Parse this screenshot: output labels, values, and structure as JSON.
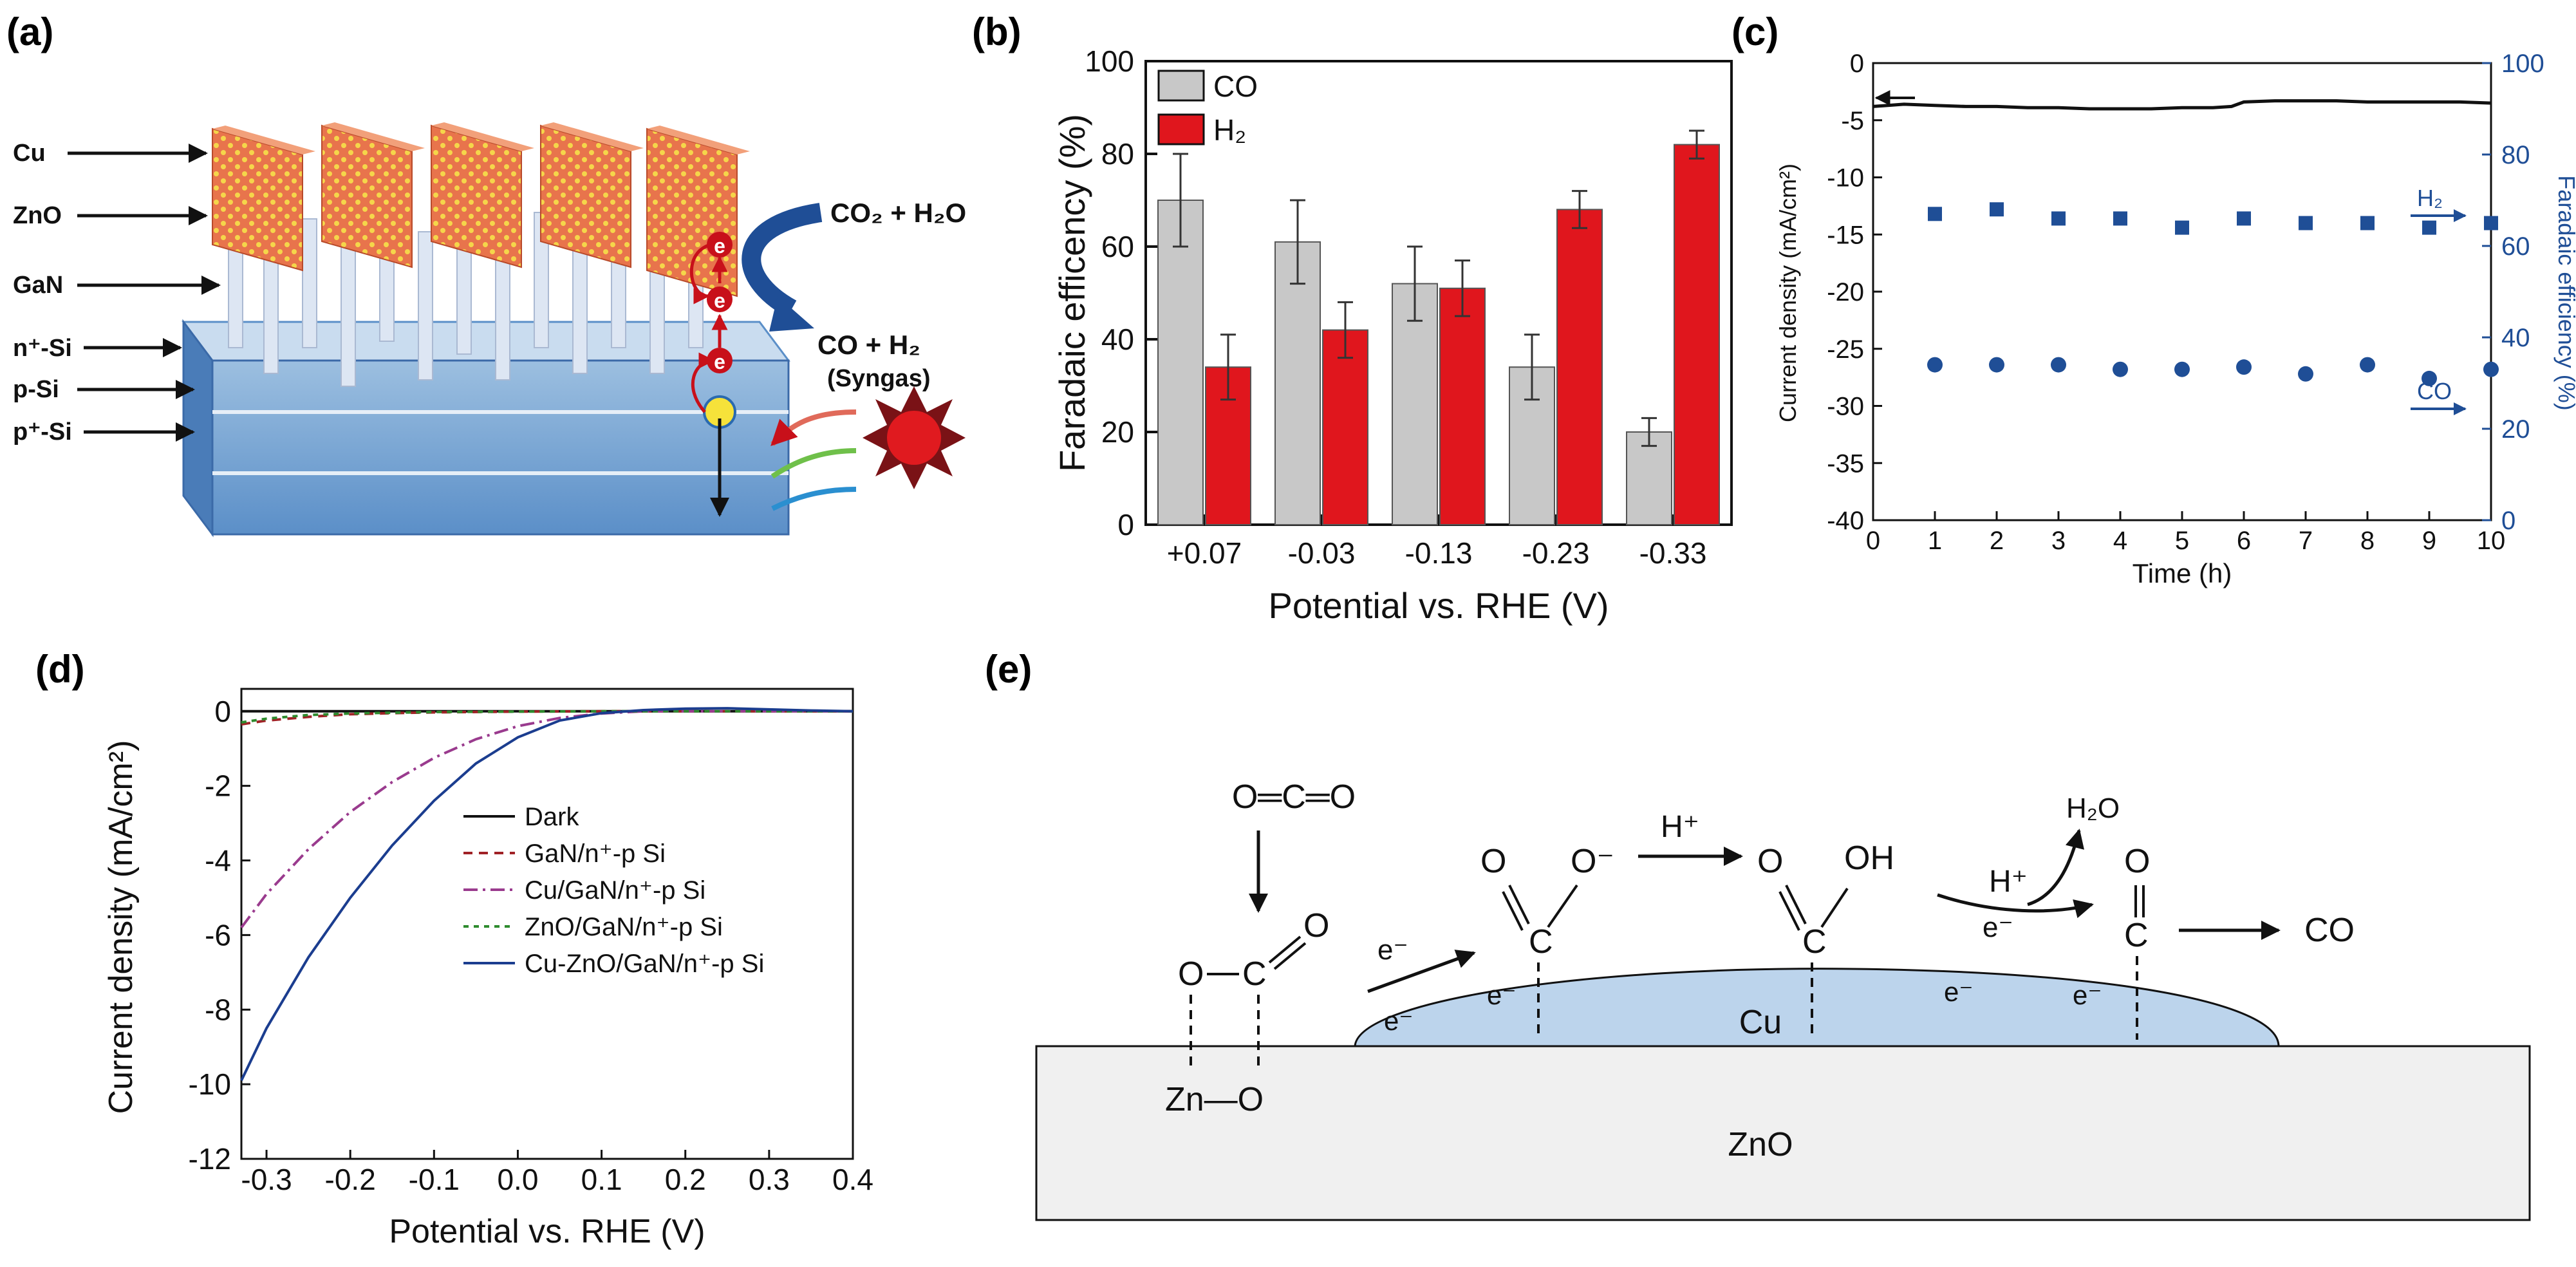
{
  "panels": {
    "a": {
      "label": "(a)",
      "layers": [
        "Cu",
        "ZnO",
        "GaN",
        "n⁺-Si",
        "p-Si",
        "p⁺-Si"
      ],
      "reactant": "CO₂ + H₂O",
      "product": "CO + H₂",
      "product_note": "(Syngas)",
      "electron_symbol": "e"
    },
    "b": {
      "label": "(b)"
    },
    "c": {
      "label": "(c)"
    },
    "d": {
      "label": "(d)"
    },
    "e": {
      "label": "(e)",
      "substrate": "ZnO",
      "metal": "Cu",
      "co2": "O═C═O",
      "electron": "e⁻",
      "proton": "H⁺",
      "water": "H₂O",
      "oh": "OH",
      "o_minus": "O⁻",
      "zn_o": "Zn—O",
      "product": "CO",
      "o": "O",
      "c": "C"
    }
  },
  "colors": {
    "gray_bar": "#c8c8c8",
    "red_bar": "#e0161d",
    "blue_marker": "#1f4e96",
    "cu_blue": "#bcd4ec"
  },
  "chart_data": [
    {
      "id": "b",
      "type": "bar",
      "categories": [
        "+0.07",
        "-0.03",
        "-0.13",
        "-0.23",
        "-0.33"
      ],
      "series": [
        {
          "name": "CO",
          "values": [
            70,
            61,
            52,
            34,
            20
          ],
          "errors": [
            10,
            9,
            8,
            7,
            3
          ]
        },
        {
          "name": "H₂",
          "values": [
            34,
            42,
            51,
            68,
            82
          ],
          "errors": [
            7,
            6,
            6,
            4,
            3
          ]
        }
      ],
      "xlabel": "Potential vs. RHE (V)",
      "ylabel": "Faradaic efficency (%)",
      "ylim": [
        0,
        100
      ],
      "yticks": [
        "0",
        "20",
        "40",
        "60",
        "80",
        "100"
      ],
      "legend": "top-left"
    },
    {
      "id": "c",
      "type": "line",
      "xlabel": "Time (h)",
      "ylabel": "Current density (mA/cm²)",
      "y2label": "Faradaic efficiency (%)",
      "xlim": [
        0,
        10
      ],
      "ylim": [
        -40,
        0
      ],
      "y2lim": [
        0,
        100
      ],
      "xticks": [
        "0",
        "1",
        "2",
        "3",
        "4",
        "5",
        "6",
        "7",
        "8",
        "9",
        "10"
      ],
      "yticks": [
        "-40",
        "-35",
        "-30",
        "-25",
        "-20",
        "-15",
        "-10",
        "-5",
        "0"
      ],
      "y2ticks": [
        "0",
        "20",
        "40",
        "60",
        "80",
        "100"
      ],
      "current": {
        "x": [
          0,
          0.5,
          1,
          1.5,
          2,
          2.5,
          3,
          3.5,
          4,
          4.5,
          5,
          5.5,
          5.8,
          6,
          6.5,
          7,
          7.5,
          8,
          8.5,
          9,
          9.5,
          10
        ],
        "y": [
          -3.8,
          -3.6,
          -3.7,
          -3.8,
          -3.8,
          -3.9,
          -3.9,
          -4.0,
          -4.0,
          -4.0,
          -3.9,
          -3.9,
          -3.8,
          -3.4,
          -3.3,
          -3.3,
          -3.3,
          -3.4,
          -3.4,
          -3.4,
          -3.4,
          -3.5
        ]
      },
      "fe_series": [
        {
          "name": "H₂",
          "marker": "square",
          "x": [
            1,
            2,
            3,
            4,
            5,
            6,
            7,
            8,
            9,
            10
          ],
          "values": [
            67,
            68,
            66,
            66,
            64,
            66,
            65,
            65,
            64,
            65
          ]
        },
        {
          "name": "CO",
          "marker": "circle",
          "x": [
            1,
            2,
            3,
            4,
            5,
            6,
            7,
            8,
            9,
            10
          ],
          "values": [
            34,
            34,
            34,
            33,
            33,
            33.5,
            32,
            34,
            31,
            33
          ]
        }
      ]
    },
    {
      "id": "d",
      "type": "line",
      "xlabel": "Potential vs. RHE (V)",
      "ylabel": "Current density (mA/cm²)",
      "xlim": [
        -0.33,
        0.4
      ],
      "ylim": [
        -12,
        0.6
      ],
      "xticks": [
        "-0.3",
        "-0.2",
        "-0.1",
        "0.0",
        "0.1",
        "0.2",
        "0.3",
        "0.4"
      ],
      "yticks": [
        "-12",
        "-10",
        "-8",
        "-6",
        "-4",
        "-2",
        "0"
      ],
      "legend": "center-right",
      "series": [
        {
          "name": "Dark",
          "color": "#111111",
          "dash": "",
          "x": [
            -0.33,
            0.4
          ],
          "y": [
            0,
            0
          ]
        },
        {
          "name": "GaN/n⁺-p Si",
          "color": "#a02226",
          "dash": "14,10",
          "x": [
            -0.33,
            -0.3,
            -0.25,
            -0.2,
            -0.15,
            -0.1,
            -0.05,
            0,
            0.1,
            0.2,
            0.3,
            0.4
          ],
          "y": [
            -0.35,
            -0.25,
            -0.15,
            -0.08,
            -0.05,
            -0.03,
            -0.02,
            -0.01,
            0,
            0,
            0,
            0
          ]
        },
        {
          "name": "Cu/GaN/n⁺-p Si",
          "color": "#9a3b8e",
          "dash": "22,8,4,8",
          "x": [
            -0.33,
            -0.3,
            -0.25,
            -0.2,
            -0.15,
            -0.1,
            -0.05,
            0,
            0.05,
            0.1,
            0.15,
            0.2,
            0.3,
            0.4
          ],
          "y": [
            -5.8,
            -4.9,
            -3.7,
            -2.7,
            -1.9,
            -1.25,
            -0.75,
            -0.4,
            -0.18,
            -0.06,
            0,
            0,
            0,
            0
          ]
        },
        {
          "name": "ZnO/GaN/n⁺-p Si",
          "color": "#2e8b2e",
          "dash": "8,8",
          "x": [
            -0.33,
            -0.3,
            -0.25,
            -0.2,
            -0.1,
            0,
            0.1,
            0.2,
            0.3,
            0.4
          ],
          "y": [
            -0.3,
            -0.2,
            -0.1,
            -0.06,
            -0.02,
            -0.01,
            0,
            0,
            0,
            0
          ]
        },
        {
          "name": "Cu-ZnO/GaN/n⁺-p Si",
          "color": "#1b3d8f",
          "dash": "",
          "x": [
            -0.33,
            -0.3,
            -0.25,
            -0.2,
            -0.15,
            -0.1,
            -0.05,
            0,
            0.05,
            0.1,
            0.15,
            0.2,
            0.25,
            0.3,
            0.35,
            0.4
          ],
          "y": [
            -9.9,
            -8.5,
            -6.6,
            -5.0,
            -3.6,
            -2.4,
            -1.4,
            -0.7,
            -0.25,
            -0.05,
            0.03,
            0.07,
            0.08,
            0.05,
            0.02,
            0.0
          ]
        }
      ]
    }
  ]
}
